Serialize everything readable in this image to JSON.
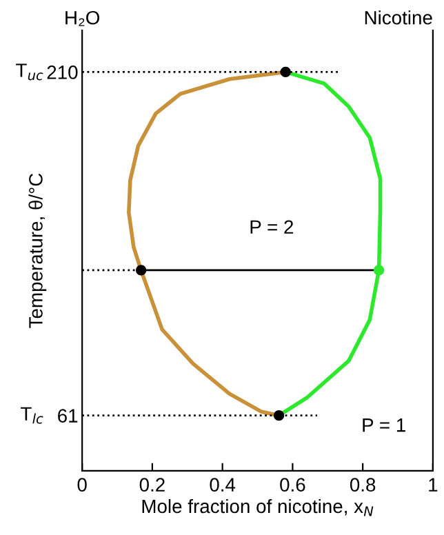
{
  "chart_data": {
    "type": "line",
    "xlabel": "Mole fraction of nicotine, x$_{N}$",
    "ylabel": "Temperature, θ/°C",
    "xlim": [
      0,
      1
    ],
    "xticks": [
      0,
      0.2,
      0.4,
      0.6,
      0.8,
      1
    ],
    "ylim": [
      37,
      228
    ],
    "yticks": [
      61,
      210
    ],
    "grid": false,
    "legend": false,
    "series": [
      {
        "color": "#c9923a",
        "line_style": "solid",
        "marker": "none",
        "x": [
          0.58,
          0.42,
          0.28,
          0.21,
          0.16,
          0.137,
          0.133,
          0.147,
          0.168,
          0.228,
          0.316,
          0.42,
          0.51,
          0.561
        ],
        "values": [
          210,
          206.9,
          200.5,
          192,
          178,
          163,
          149,
          134,
          124,
          98.3,
          83.5,
          70.4,
          62.7,
          61
        ]
      },
      {
        "color": "#2ee82e",
        "line_style": "solid",
        "marker": "none",
        "x": [
          0.561,
          0.64,
          0.76,
          0.82,
          0.846,
          0.85,
          0.85,
          0.82,
          0.76,
          0.69,
          0.58
        ],
        "values": [
          61,
          68.6,
          84.7,
          102.5,
          124,
          150,
          163.7,
          181.5,
          195,
          205,
          210
        ]
      },
      {
        "type": "line",
        "color": "#000000",
        "line_style": "solid",
        "marker": "none",
        "x": [
          0.168,
          0.846
        ],
        "values": [
          124,
          124
        ]
      },
      {
        "type": "line",
        "color": "#000000",
        "line_style": "dotted",
        "marker": "none",
        "x": [
          0,
          0.73
        ],
        "values": [
          210,
          210
        ]
      },
      {
        "type": "line",
        "color": "#000000",
        "line_style": "dotted",
        "marker": "none",
        "x": [
          0,
          0.168
        ],
        "values": [
          124,
          124
        ]
      },
      {
        "type": "line",
        "color": "#000000",
        "line_style": "dotted",
        "marker": "none",
        "x": [
          0,
          0.67
        ],
        "values": [
          61,
          61
        ]
      },
      {
        "type": "scatter",
        "marker": "circle",
        "x": [
          0.58,
          0.168,
          0.846,
          0.561
        ],
        "values": [
          210,
          124,
          124,
          61
        ],
        "colors": [
          "#000000",
          "#000000",
          "#2ee82e",
          "#000000"
        ]
      }
    ],
    "annotations": [
      "H₂O",
      "Nicotine",
      "P = 2",
      "P = 1",
      {
        "text": "T$_{uc}$",
        "x": 0,
        "y": 210
      },
      {
        "text": "T$_{lc}$",
        "x": 0,
        "y": 61
      }
    ]
  }
}
